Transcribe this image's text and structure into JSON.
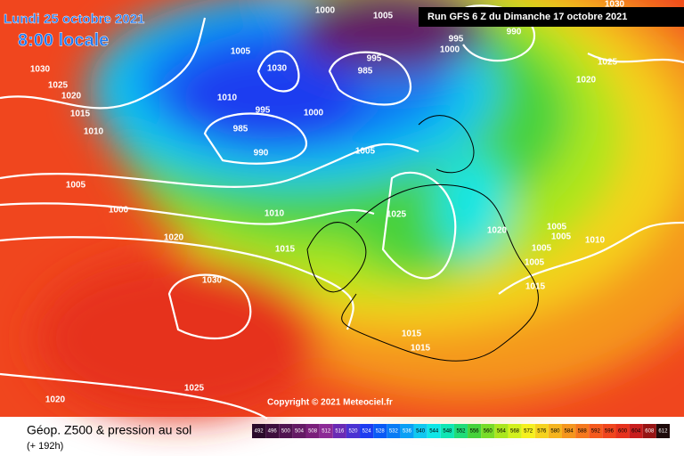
{
  "header": {
    "date": "Lundi 25 octobre 2021",
    "time": "8:00 locale",
    "run": "Run GFS 6 Z du Dimanche 17 octobre 2021"
  },
  "copyright": "Copyright © 2021 Meteociel.fr",
  "footer": {
    "title": "Géop. Z500 & pression au sol",
    "lead": "(+ 192h)"
  },
  "isobar_labels": [
    "1030",
    "1025",
    "1020",
    "1015",
    "1010",
    "1005",
    "1000",
    "1020",
    "1030",
    "1025",
    "1020",
    "1010",
    "995",
    "985",
    "990",
    "1000",
    "1030",
    "1005",
    "1000",
    "1005",
    "995",
    "1000",
    "990",
    "995",
    "985",
    "1005",
    "1010",
    "1015",
    "1025",
    "1020",
    "1005",
    "1005",
    "1005",
    "1005",
    "1010",
    "1015",
    "1015",
    "1015",
    "1025",
    "1020",
    "1030"
  ],
  "scale": [
    {
      "value": 492,
      "color": "#2a0a2a"
    },
    {
      "value": 496,
      "color": "#3d0f3d"
    },
    {
      "value": 500,
      "color": "#501450"
    },
    {
      "value": 504,
      "color": "#641a64"
    },
    {
      "value": 508,
      "color": "#7a1f7a"
    },
    {
      "value": 512,
      "color": "#8c2a96"
    },
    {
      "value": 516,
      "color": "#6a2ab4"
    },
    {
      "value": 520,
      "color": "#4a32d2"
    },
    {
      "value": 524,
      "color": "#1e3cf0"
    },
    {
      "value": 528,
      "color": "#0a5af5"
    },
    {
      "value": 532,
      "color": "#0a7cf5"
    },
    {
      "value": 536,
      "color": "#0aa0f5"
    },
    {
      "value": 540,
      "color": "#10c8f0"
    },
    {
      "value": 544,
      "color": "#10e6e6"
    },
    {
      "value": 548,
      "color": "#10e6b4"
    },
    {
      "value": 552,
      "color": "#20dc78"
    },
    {
      "value": 556,
      "color": "#46d23c"
    },
    {
      "value": 560,
      "color": "#78dc28"
    },
    {
      "value": 564,
      "color": "#aae61e"
    },
    {
      "value": 568,
      "color": "#d2f01e"
    },
    {
      "value": 572,
      "color": "#f5f01e"
    },
    {
      "value": 576,
      "color": "#f5d21e"
    },
    {
      "value": 580,
      "color": "#f5b41e"
    },
    {
      "value": 584,
      "color": "#f5961e"
    },
    {
      "value": 588,
      "color": "#f5781e"
    },
    {
      "value": 592,
      "color": "#f55a1e"
    },
    {
      "value": 596,
      "color": "#f0461e"
    },
    {
      "value": 600,
      "color": "#e6321e"
    },
    {
      "value": 604,
      "color": "#c81e1e"
    },
    {
      "value": 608,
      "color": "#961414"
    },
    {
      "value": 612,
      "color": "#1e0a0a"
    }
  ]
}
